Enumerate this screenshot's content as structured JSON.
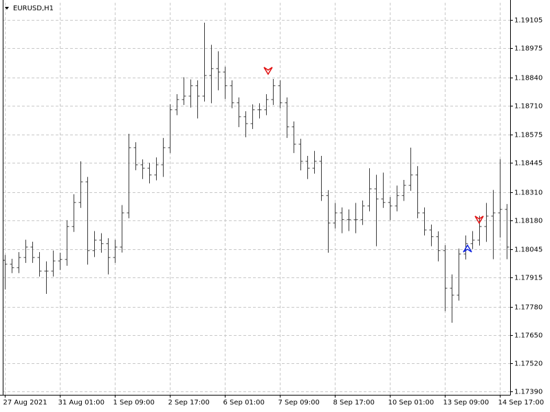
{
  "chart_data": {
    "type": "ohlc",
    "title": "EURUSD,H1",
    "color": "#3c3c3c",
    "open": [
      1.17995,
      1.17977,
      1.17961,
      1.18008,
      1.18056,
      1.18008,
      1.17945,
      1.17945,
      1.17992,
      1.17999,
      1.18151,
      1.18262,
      1.18357,
      1.1804,
      1.18088,
      1.18072,
      1.18008,
      1.18056,
      1.18214,
      1.18515,
      1.18436,
      1.1842,
      1.18389,
      1.18436,
      1.18515,
      1.1869,
      1.18737,
      1.18753,
      1.18801,
      1.18753,
      1.18848,
      1.1888,
      1.18864,
      1.18801,
      1.18722,
      1.18658,
      1.18626,
      1.1869,
      1.1869,
      1.18737,
      1.18801,
      1.18722,
      1.18611,
      1.18531,
      1.18452,
      1.1842,
      1.18452,
      1.18294,
      1.18167,
      1.18214,
      1.18183,
      1.18183,
      1.18183,
      1.18246,
      1.18325,
      1.18278,
      1.18262,
      1.18246,
      1.18294,
      1.18341,
      1.18389,
      1.18214,
      1.18135,
      1.18104,
      1.1804,
      1.17866,
      1.17834,
      1.18024,
      1.18072,
      1.18088,
      1.18151,
      1.18199,
      1.18214,
      1.1823
    ],
    "high": [
      1.1802,
      1.18002,
      1.18033,
      1.1809,
      1.18081,
      1.18033,
      1.1799,
      1.1804,
      1.1803,
      1.1818,
      1.183,
      1.18452,
      1.1838,
      1.1813,
      1.1812,
      1.18097,
      1.1809,
      1.1825,
      1.18579,
      1.1854,
      1.18461,
      1.18445,
      1.1847,
      1.1856,
      1.18715,
      1.18762,
      1.1884,
      1.1883,
      1.18826,
      1.19092,
      1.1899,
      1.1896,
      1.18889,
      1.18826,
      1.18747,
      1.18683,
      1.18715,
      1.1872,
      1.18762,
      1.18832,
      1.18826,
      1.18747,
      1.18636,
      1.18556,
      1.18477,
      1.185,
      1.18477,
      1.18319,
      1.1826,
      1.18239,
      1.1823,
      1.1826,
      1.18271,
      1.1842,
      1.1839,
      1.184,
      1.18287,
      1.1834,
      1.18366,
      1.18515,
      1.1843,
      1.18239,
      1.1816,
      1.18129,
      1.18065,
      1.1793,
      1.18049,
      1.1811,
      1.1813,
      1.182,
      1.1826,
      1.1832,
      1.18462,
      1.18255
    ],
    "low": [
      1.1786,
      1.17936,
      1.17936,
      1.17983,
      1.17983,
      1.1792,
      1.1784,
      1.1792,
      1.1795,
      1.1797,
      1.18126,
      1.18237,
      1.17975,
      1.1801,
      1.1803,
      1.1793,
      1.17983,
      1.18031,
      1.18189,
      1.18411,
      1.1837,
      1.1835,
      1.18364,
      1.1838,
      1.1849,
      1.18665,
      1.18712,
      1.187,
      1.1865,
      1.18728,
      1.1872,
      1.1878,
      1.1874,
      1.18697,
      1.1861,
      1.18563,
      1.18601,
      1.1865,
      1.18665,
      1.18712,
      1.18697,
      1.1856,
      1.1849,
      1.1841,
      1.1837,
      1.18395,
      1.18269,
      1.1803,
      1.18142,
      1.1812,
      1.1813,
      1.1812,
      1.18158,
      1.18221,
      1.1806,
      1.18237,
      1.1818,
      1.18221,
      1.18269,
      1.18316,
      1.18189,
      1.1811,
      1.1806,
      1.1799,
      1.1776,
      1.17707,
      1.17809,
      1.17999,
      1.18047,
      1.18063,
      1.1808,
      1.18,
      1.181,
      1.18
    ],
    "close": [
      1.17977,
      1.17961,
      1.18008,
      1.18056,
      1.18008,
      1.17945,
      1.17945,
      1.17992,
      1.17999,
      1.18151,
      1.18262,
      1.18357,
      1.1804,
      1.18088,
      1.18072,
      1.18008,
      1.18056,
      1.18214,
      1.18515,
      1.18436,
      1.1842,
      1.18389,
      1.18436,
      1.18515,
      1.1869,
      1.18737,
      1.18753,
      1.18801,
      1.18753,
      1.18848,
      1.1888,
      1.18864,
      1.18801,
      1.18722,
      1.18658,
      1.18626,
      1.1869,
      1.1869,
      1.18737,
      1.18801,
      1.18722,
      1.18611,
      1.18531,
      1.18452,
      1.1842,
      1.18452,
      1.18294,
      1.18167,
      1.18214,
      1.18183,
      1.18183,
      1.18183,
      1.18246,
      1.18325,
      1.18278,
      1.18262,
      1.18246,
      1.18294,
      1.18341,
      1.18389,
      1.18214,
      1.18135,
      1.18104,
      1.1804,
      1.17866,
      1.17834,
      1.18024,
      1.18072,
      1.18088,
      1.18151,
      1.18199,
      1.18214,
      1.1823,
      1.18056
    ],
    "xlim": [
      -0.3,
      73.5
    ],
    "xticks": [
      {
        "value": 0,
        "label": "27 Aug 2021"
      },
      {
        "value": 8,
        "label": "31 Aug 01:00"
      },
      {
        "value": 16,
        "label": "1 Sep 09:00"
      },
      {
        "value": 24,
        "label": "2 Sep 17:00"
      },
      {
        "value": 32,
        "label": "6 Sep 01:00"
      },
      {
        "value": 40,
        "label": "7 Sep 09:00"
      },
      {
        "value": 48,
        "label": "8 Sep 17:00"
      },
      {
        "value": 56,
        "label": "10 Sep 01:00"
      },
      {
        "value": 64,
        "label": "13 Sep 09:00"
      },
      {
        "value": 72,
        "label": "14 Sep 17:00"
      }
    ],
    "ylim": [
      1.17374,
      1.19184
    ],
    "yticks": [
      1.19105,
      1.18975,
      {
        "value": 1.1884,
        "label": "1.18840"
      },
      {
        "value": 1.1871,
        "label": "1.18710"
      },
      1.18575,
      1.18445,
      {
        "value": 1.1831,
        "label": "1.18310"
      },
      {
        "value": 1.1818,
        "label": "1.18180"
      },
      1.18045,
      1.17915,
      {
        "value": 1.1778,
        "label": "1.17780"
      },
      {
        "value": 1.1765,
        "label": "1.17650"
      },
      {
        "value": 1.1752,
        "label": "1.17520"
      },
      {
        "value": 1.1739,
        "label": "1.17390"
      }
    ],
    "grid": true,
    "down_arrows": {
      "x": [
        38.3,
        69
      ],
      "values": [
        1.1887,
        1.18183
      ],
      "color": "#e01010"
    },
    "up_arrows": {
      "x": [
        67.3
      ],
      "values": [
        1.18049
      ],
      "color": "#1428e0"
    }
  }
}
